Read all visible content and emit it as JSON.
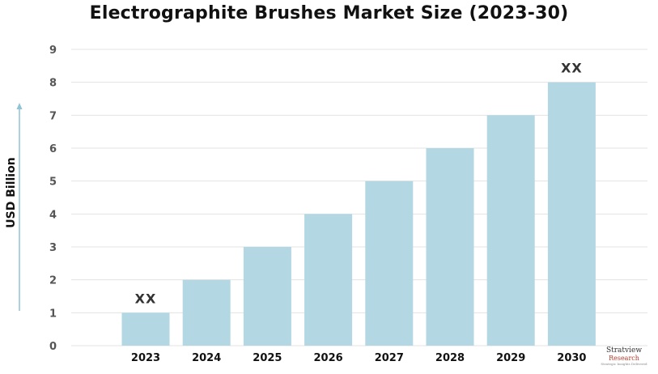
{
  "chart_data": {
    "type": "bar",
    "title": "Electrographite Brushes Market Size (2023-30)",
    "xlabel": "",
    "ylabel": "USD Billion",
    "categories": [
      "2023",
      "2024",
      "2025",
      "2026",
      "2027",
      "2028",
      "2029",
      "2030"
    ],
    "values": [
      1,
      2,
      3,
      4,
      5,
      6,
      7,
      8
    ],
    "ylim": [
      0,
      9
    ],
    "yticks": [
      "0",
      "1",
      "2",
      "3",
      "4",
      "5",
      "6",
      "7",
      "8",
      "9"
    ],
    "annotations": [
      {
        "category": "2023",
        "text": "XX"
      },
      {
        "category": "2030",
        "text": "XX"
      }
    ],
    "grid": true,
    "legend": "none",
    "bar_color": "#b3d7e3",
    "grid_color": "#e3e3e3",
    "axis_arrow_color": "#8fc3d6"
  },
  "logo": {
    "name": "Stratview",
    "sub": "Research",
    "tagline": "Strategic Insights Delivered"
  }
}
